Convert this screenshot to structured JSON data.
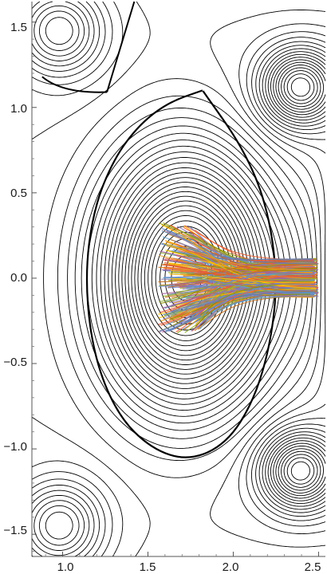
{
  "chart_data": {
    "type": "contour",
    "title": "",
    "xlabel": "",
    "ylabel": "",
    "xlim": [
      0.82,
      2.54
    ],
    "ylim": [
      -1.63,
      1.62
    ],
    "x_ticks": [
      {
        "value": 1.0,
        "label": "1.0"
      },
      {
        "value": 1.5,
        "label": "1.5"
      },
      {
        "value": 2.0,
        "label": "2.0"
      },
      {
        "value": 2.5,
        "label": "2.5"
      }
    ],
    "y_ticks": [
      {
        "value": 1.5,
        "label": "1.5"
      },
      {
        "value": 1.0,
        "label": "1.0"
      },
      {
        "value": 0.5,
        "label": "0.5"
      },
      {
        "value": 0.0,
        "label": "0.0"
      },
      {
        "value": -0.5,
        "label": "−0.5"
      },
      {
        "value": -1.0,
        "label": "−1.0"
      },
      {
        "value": -1.5,
        "label": "−1.5"
      }
    ],
    "grid": false,
    "legend": "none",
    "contour_color": "#000000",
    "magnetic_axis": {
      "R": 1.72,
      "Z": 0.0
    },
    "x_point": {
      "R": 1.26,
      "Z": 1.09
    },
    "separatrix_points": [
      [
        1.82,
        1.1
      ],
      [
        1.62,
        1.03
      ],
      [
        1.45,
        0.9
      ],
      [
        1.3,
        0.7
      ],
      [
        1.18,
        0.4
      ],
      [
        1.13,
        0.0
      ],
      [
        1.18,
        -0.45
      ],
      [
        1.32,
        -0.8
      ],
      [
        1.52,
        -1.0
      ],
      [
        1.74,
        -1.07
      ],
      [
        1.96,
        -0.97
      ],
      [
        2.12,
        -0.72
      ],
      [
        2.22,
        -0.38
      ],
      [
        2.26,
        0.0
      ],
      [
        2.2,
        0.42
      ],
      [
        2.06,
        0.76
      ],
      [
        1.82,
        1.1
      ]
    ],
    "outer_o_points": [
      {
        "R": 2.39,
        "Z": 1.12
      },
      {
        "R": 2.39,
        "Z": -1.13
      }
    ],
    "trajectory_bundle": {
      "R_range": [
        1.56,
        2.5
      ],
      "Z_range": [
        -0.32,
        0.33
      ],
      "colors": [
        "#5e81b5",
        "#e19c24",
        "#8fb032",
        "#eb6235",
        "#8778b3",
        "#c56e1a",
        "#5d9ec7",
        "#ffbf00",
        "#a5609d",
        "#929600",
        "#e95536",
        "#6685d9"
      ]
    }
  }
}
